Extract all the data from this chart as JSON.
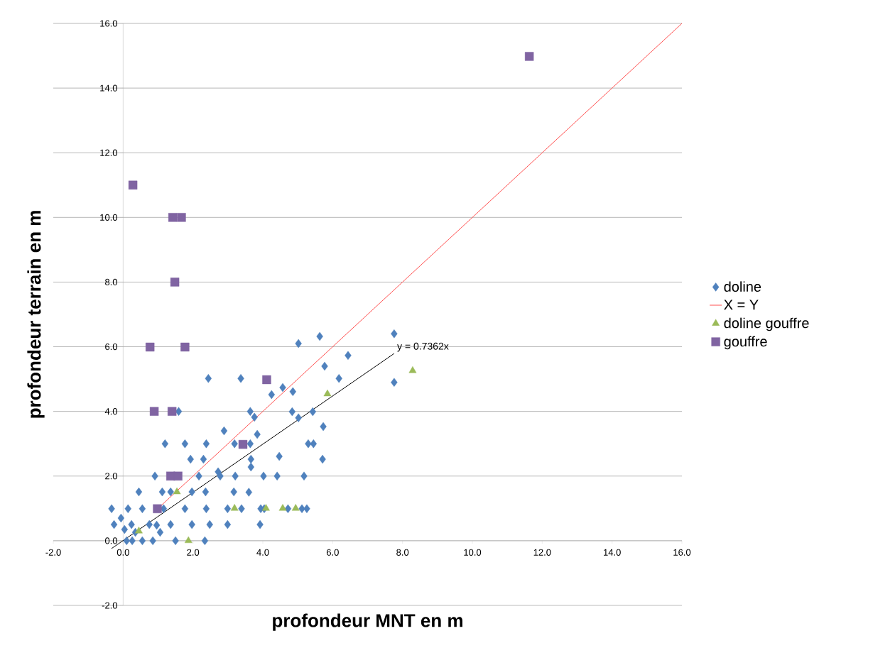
{
  "chart_data": {
    "type": "scatter",
    "xlabel": "profondeur MNT en m",
    "ylabel": "profondeur terrain en m",
    "xlim": [
      -2,
      16
    ],
    "ylim": [
      -2,
      16
    ],
    "xticks": [
      {
        "value": -2,
        "label": "-2.0"
      },
      {
        "value": 0,
        "label": "0.0"
      },
      {
        "value": 2,
        "label": "2.0"
      },
      {
        "value": 4,
        "label": "4.0"
      },
      {
        "value": 6,
        "label": "6.0"
      },
      {
        "value": 8,
        "label": "8.0"
      },
      {
        "value": 10,
        "label": "10.0"
      },
      {
        "value": 12,
        "label": "12.0"
      },
      {
        "value": 14,
        "label": "14.0"
      },
      {
        "value": 16,
        "label": "16.0"
      }
    ],
    "yticks": [
      {
        "value": -2,
        "label": "-2.0"
      },
      {
        "value": 0,
        "label": "0.0"
      },
      {
        "value": 2,
        "label": "2.0"
      },
      {
        "value": 4,
        "label": "4.0"
      },
      {
        "value": 6,
        "label": "6.0"
      },
      {
        "value": 8,
        "label": "8.0"
      },
      {
        "value": 10,
        "label": "10.0"
      },
      {
        "value": 12,
        "label": "12.0"
      },
      {
        "value": 14,
        "label": "14.0"
      },
      {
        "value": 16,
        "label": "16.0"
      }
    ],
    "grid": "y",
    "legend": "right",
    "annotations": [
      {
        "text": "y = 0.7362x",
        "x": 7.8,
        "y": 5.8
      }
    ],
    "series": [
      {
        "name": "doline",
        "type": "scatter",
        "marker": "diamond",
        "color": "#4f81bd",
        "x": [
          7.76,
          5.63,
          5.02,
          6.44,
          5.77,
          6.18,
          7.76,
          2.44,
          3.37,
          4.25,
          4.57,
          4.86,
          4.84,
          5.43,
          5.02,
          5.73,
          5.3,
          5.45,
          5.71,
          5.18,
          4.47,
          4.41,
          3.94,
          3.92,
          3.64,
          3.76,
          3.84,
          3.64,
          3.66,
          3.66,
          3.6,
          4.02,
          4.04,
          1.59,
          2.89,
          2.72,
          3.21,
          3.17,
          2.36,
          1.2,
          1.77,
          2.38,
          3.19,
          1.93,
          2.3,
          0.91,
          2.17,
          2.78,
          1.12,
          1.36,
          1.97,
          0.45,
          -0.33,
          0.14,
          0.55,
          1.16,
          1.77,
          2.38,
          2.99,
          3.39,
          4.72,
          5.12,
          5.26,
          -0.26,
          0.24,
          0.75,
          1.36,
          1.97,
          2.48,
          2.99,
          0.04,
          0.35,
          -0.06,
          0.1,
          0.26,
          0.55,
          0.85,
          1.5,
          2.34,
          0.96,
          1.06
        ],
        "values": [
          6.4,
          6.32,
          6.1,
          5.73,
          5.4,
          5.02,
          4.9,
          5.02,
          5.02,
          4.52,
          4.74,
          4.61,
          3.99,
          3.99,
          3.8,
          3.53,
          3.0,
          3.0,
          2.52,
          2.0,
          2.61,
          2.0,
          0.99,
          0.5,
          4.0,
          3.82,
          3.29,
          3.0,
          2.52,
          2.28,
          1.5,
          2.0,
          0.99,
          4.0,
          3.4,
          2.13,
          2.0,
          1.51,
          1.51,
          3.0,
          3.0,
          3.0,
          3.0,
          2.52,
          2.52,
          2.0,
          2.0,
          2.0,
          1.51,
          1.51,
          1.51,
          1.51,
          0.99,
          0.99,
          0.99,
          0.99,
          0.99,
          0.99,
          0.99,
          0.99,
          0.99,
          0.99,
          0.99,
          0.5,
          0.5,
          0.5,
          0.5,
          0.5,
          0.5,
          0.5,
          0.35,
          0.26,
          0.7,
          0.0,
          0.0,
          0.0,
          0.0,
          0.0,
          0.0,
          0.48,
          0.26
        ]
      },
      {
        "name": "X = Y",
        "type": "line",
        "line_style": "solid",
        "color": "#ff5050",
        "x": [
          1,
          16
        ],
        "values": [
          1,
          16
        ]
      },
      {
        "name": "doline gouffre",
        "type": "scatter",
        "marker": "triangle",
        "color": "#9bbb59",
        "x": [
          8.29,
          5.85,
          1.54,
          3.19,
          4.09,
          4.57,
          4.94,
          1.87,
          0.45
        ],
        "values": [
          5.26,
          4.54,
          1.51,
          1.0,
          1.0,
          1.0,
          1.0,
          0.0,
          0.3
        ]
      },
      {
        "name": "gouffre",
        "type": "scatter",
        "marker": "square",
        "color": "#8064a2",
        "x": [
          11.63,
          0.28,
          1.42,
          1.67,
          1.48,
          0.77,
          1.77,
          0.89,
          1.4,
          4.11,
          3.43,
          1.36,
          1.57,
          0.98
        ],
        "values": [
          14.98,
          11.0,
          10.0,
          10.0,
          8.0,
          5.99,
          5.99,
          4.0,
          4.0,
          4.98,
          2.98,
          2.0,
          2.0,
          0.99
        ]
      },
      {
        "type": "line",
        "line_style": "solid",
        "color": "#000000",
        "x": [
          -0.33,
          7.76
        ],
        "values": [
          -0.24,
          5.79
        ]
      }
    ]
  }
}
